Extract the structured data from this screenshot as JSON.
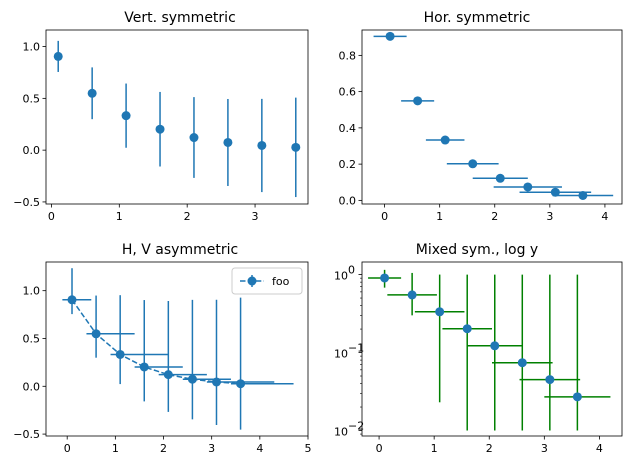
{
  "chart_data": [
    {
      "type": "scatter",
      "title": "Vert. symmetric",
      "xlim": [
        -0.08,
        3.78
      ],
      "ylim": [
        -0.52,
        1.16
      ],
      "yscale": "linear",
      "xticks": [
        0,
        1,
        2,
        3
      ],
      "xtick_labels": [
        "0",
        "1",
        "2",
        "3"
      ],
      "yticks": [
        -0.5,
        0.0,
        0.5,
        1.0
      ],
      "ytick_labels": [
        "−0.5",
        "0.0",
        "0.5",
        "1.0"
      ],
      "x": [
        0.1,
        0.6,
        1.1,
        1.6,
        2.1,
        2.6,
        3.1,
        3.6
      ],
      "y": [
        0.905,
        0.549,
        0.333,
        0.202,
        0.122,
        0.074,
        0.045,
        0.027
      ],
      "yerr": [
        0.15,
        0.25,
        0.31,
        0.36,
        0.39,
        0.42,
        0.45,
        0.48
      ],
      "line": "none",
      "color": "#1f77b4"
    },
    {
      "type": "scatter",
      "title": "Hor. symmetric",
      "xlim": [
        -0.41,
        4.31
      ],
      "ylim": [
        -0.02,
        0.94
      ],
      "yscale": "linear",
      "xticks": [
        0,
        1,
        2,
        3,
        4
      ],
      "xtick_labels": [
        "0",
        "1",
        "2",
        "3",
        "4"
      ],
      "yticks": [
        0.0,
        0.2,
        0.4,
        0.6,
        0.8
      ],
      "ytick_labels": [
        "0.0",
        "0.2",
        "0.4",
        "0.6",
        "0.8"
      ],
      "x": [
        0.1,
        0.6,
        1.1,
        1.6,
        2.1,
        2.6,
        3.1,
        3.6
      ],
      "y": [
        0.905,
        0.549,
        0.333,
        0.202,
        0.122,
        0.074,
        0.045,
        0.027
      ],
      "xerr": [
        0.3,
        0.3,
        0.35,
        0.47,
        0.5,
        0.62,
        0.65,
        0.55
      ],
      "line": "none",
      "color": "#1f77b4"
    },
    {
      "type": "line",
      "title": "H, V asymmetric",
      "xlim": [
        -0.44,
        5.0
      ],
      "ylim": [
        -0.52,
        1.3
      ],
      "yscale": "linear",
      "xticks": [
        0,
        1,
        2,
        3,
        4,
        5
      ],
      "xtick_labels": [
        "0",
        "1",
        "2",
        "3",
        "4",
        "5"
      ],
      "yticks": [
        -0.5,
        0.0,
        0.5,
        1.0
      ],
      "ytick_labels": [
        "−0.5",
        "0.0",
        "0.5",
        "1.0"
      ],
      "x": [
        0.1,
        0.6,
        1.1,
        1.6,
        2.1,
        2.6,
        3.1,
        3.6
      ],
      "y": [
        0.905,
        0.549,
        0.333,
        0.202,
        0.122,
        0.074,
        0.045,
        0.027
      ],
      "xerr_minus": [
        0.2,
        0.2,
        0.2,
        0.2,
        0.2,
        0.2,
        0.2,
        0.2
      ],
      "xerr_plus": [
        0.4,
        0.8,
        1.0,
        0.8,
        0.8,
        0.8,
        1.2,
        1.1
      ],
      "yerr_minus": [
        0.15,
        0.25,
        0.31,
        0.36,
        0.39,
        0.42,
        0.45,
        0.48
      ],
      "yerr_plus": [
        0.33,
        0.4,
        0.62,
        0.7,
        0.77,
        0.83,
        0.86,
        0.9
      ],
      "line": "dashed",
      "color": "#1f77b4",
      "legend": "foo",
      "legend_loc": "upper right"
    },
    {
      "type": "scatter",
      "title": "Mixed sym., log y",
      "xlim": [
        -0.31,
        4.41
      ],
      "ylim": [
        0.0085,
        1.45
      ],
      "yscale": "log",
      "xticks": [
        0,
        1,
        2,
        3,
        4
      ],
      "xtick_labels": [
        "0",
        "1",
        "2",
        "3",
        "4"
      ],
      "yticks": [
        0.01,
        0.1,
        1.0
      ],
      "ytick_labels": [
        "10",
        "10",
        "10"
      ],
      "ytick_exponents": [
        "−2",
        "−1",
        "0"
      ],
      "x": [
        0.1,
        0.6,
        1.1,
        1.6,
        2.1,
        2.6,
        3.1,
        3.6
      ],
      "y": [
        0.905,
        0.549,
        0.333,
        0.202,
        0.122,
        0.074,
        0.045,
        0.027
      ],
      "xerr": [
        0.3,
        0.45,
        0.45,
        0.45,
        0.5,
        0.55,
        0.55,
        0.6
      ],
      "y_low": [
        0.68,
        0.3,
        0.023,
        0.01,
        0.01,
        0.01,
        0.01,
        0.01
      ],
      "y_high": [
        1.15,
        1.05,
        1.0,
        1.0,
        1.0,
        1.0,
        1.0,
        1.0
      ],
      "line": "none",
      "color": "#1f77b4",
      "errcolor": "#008000"
    }
  ]
}
